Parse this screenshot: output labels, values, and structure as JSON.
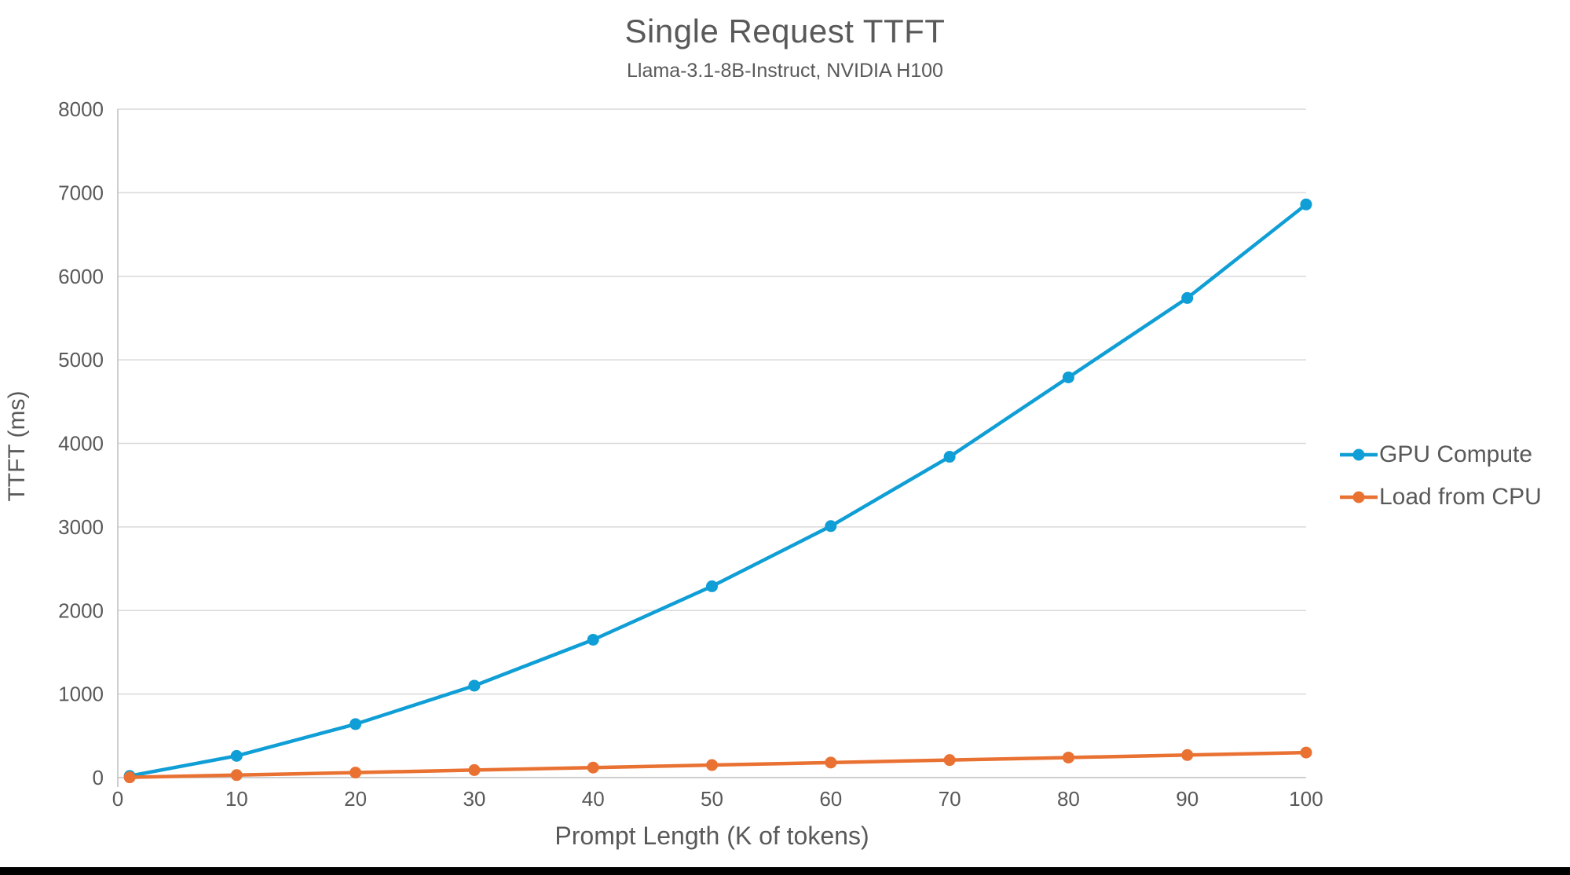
{
  "page": {
    "background": "#ffffff",
    "bottom_bar_color": "#000000"
  },
  "chart": {
    "title": "Single Request TTFT",
    "subtitle": "Llama-3.1-8B-Instruct, NVIDIA H100"
  },
  "chart_data": {
    "type": "line",
    "title": "Single Request TTFT",
    "subtitle": "Llama-3.1-8B-Instruct, NVIDIA H100",
    "xlabel": "Prompt Length (K of tokens)",
    "ylabel": "TTFT (ms)",
    "x": [
      1,
      10,
      20,
      30,
      40,
      50,
      60,
      70,
      80,
      90,
      100
    ],
    "series": [
      {
        "name": "GPU Compute",
        "color": "#0F9ED5",
        "values": [
          20,
          260,
          640,
          1100,
          1650,
          2290,
          3010,
          3840,
          4790,
          5740,
          6860
        ]
      },
      {
        "name": "Load from CPU",
        "color": "#E97132",
        "values": [
          3,
          30,
          60,
          90,
          120,
          150,
          180,
          210,
          240,
          270,
          300
        ]
      }
    ],
    "xlim": [
      0,
      100
    ],
    "ylim": [
      0,
      8000
    ],
    "x_ticks": [
      0,
      10,
      20,
      30,
      40,
      50,
      60,
      70,
      80,
      90,
      100
    ],
    "y_ticks": [
      0,
      1000,
      2000,
      3000,
      4000,
      5000,
      6000,
      7000,
      8000
    ],
    "grid": "horizontal",
    "legend_position": "right",
    "style": {
      "text_color": "#595959",
      "gridline_color": "#D9D9D9",
      "axis_line_color": "#BFBFBF",
      "line_width": 4.5,
      "marker_radius": 7.5
    }
  }
}
